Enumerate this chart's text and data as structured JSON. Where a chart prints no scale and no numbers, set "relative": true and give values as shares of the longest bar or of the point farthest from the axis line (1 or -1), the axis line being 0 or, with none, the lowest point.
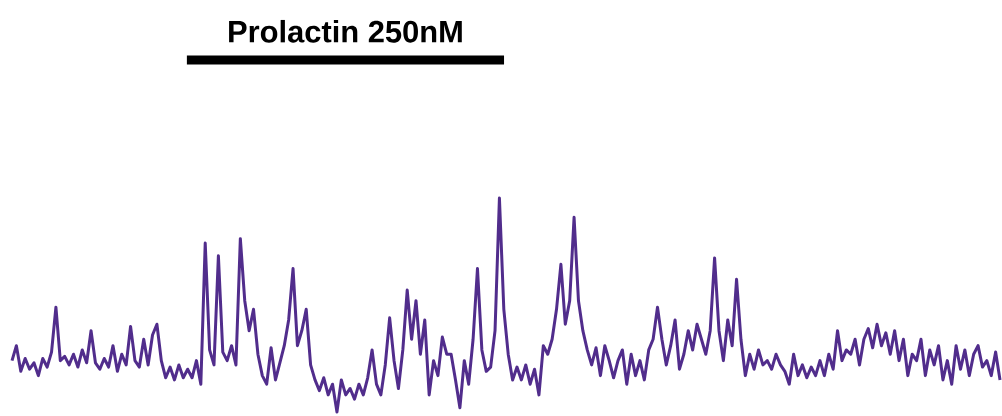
{
  "chart_data": {
    "type": "line",
    "relative": true,
    "line_style": "solid",
    "marker": "none",
    "categories": [
      null,
      null,
      null,
      null,
      null,
      null,
      null,
      null,
      null,
      null,
      null,
      null,
      null,
      null,
      null,
      null,
      null,
      null,
      null,
      null,
      null,
      null,
      null,
      null,
      null,
      null,
      null,
      null,
      null,
      null,
      null,
      null,
      null,
      null,
      null,
      null,
      null,
      null,
      null,
      null,
      null,
      null,
      null,
      null,
      null,
      null,
      null,
      null,
      null,
      null,
      null,
      null,
      null,
      null,
      null,
      null,
      null,
      null,
      null,
      null,
      null,
      null,
      null,
      null,
      null,
      null,
      null,
      null,
      null,
      null,
      null,
      null,
      null,
      null,
      null,
      null,
      null,
      null,
      null,
      null,
      null,
      null,
      null,
      null,
      null,
      null,
      null,
      null,
      null,
      null,
      null,
      null,
      null,
      null,
      null,
      null,
      null,
      null,
      null,
      null,
      null,
      null,
      null,
      null,
      null,
      null,
      null,
      null,
      null,
      null,
      null,
      null,
      null,
      null,
      null,
      null,
      null,
      null,
      null,
      null,
      null,
      null,
      null,
      null,
      null,
      null,
      null,
      null,
      null,
      null,
      null,
      null,
      null,
      null,
      null,
      null,
      null,
      null,
      null,
      null,
      null,
      null,
      null,
      null,
      null,
      null,
      null,
      null,
      null,
      null,
      null,
      null,
      null,
      null,
      null,
      null,
      null,
      null,
      null,
      null,
      null,
      null,
      null,
      null,
      null,
      null,
      null,
      null,
      null,
      null,
      null,
      null,
      null,
      null,
      null,
      null,
      null,
      null,
      null,
      null,
      null,
      null,
      null,
      null,
      null,
      null,
      null,
      null,
      null,
      null,
      null,
      null,
      null,
      null,
      null,
      null,
      null,
      null,
      null,
      null,
      null,
      null,
      null,
      null,
      null,
      null,
      null,
      null,
      null,
      null,
      null,
      null,
      null,
      null,
      null,
      null,
      null,
      null,
      null,
      null,
      null,
      null,
      null,
      null,
      null,
      null
    ],
    "series": [
      {
        "color": "#512d8c",
        "values": [
          0.24,
          0.31,
          0.19,
          0.25,
          0.2,
          0.23,
          0.17,
          0.25,
          0.21,
          0.28,
          0.49,
          0.24,
          0.26,
          0.22,
          0.27,
          0.21,
          0.29,
          0.23,
          0.38,
          0.23,
          0.2,
          0.25,
          0.21,
          0.31,
          0.19,
          0.27,
          0.22,
          0.4,
          0.24,
          0.21,
          0.34,
          0.22,
          0.36,
          0.41,
          0.24,
          0.16,
          0.21,
          0.15,
          0.22,
          0.16,
          0.2,
          0.16,
          0.24,
          0.13,
          0.79,
          0.29,
          0.22,
          0.73,
          0.28,
          0.24,
          0.31,
          0.22,
          0.81,
          0.52,
          0.38,
          0.48,
          0.27,
          0.17,
          0.13,
          0.3,
          0.15,
          0.23,
          0.31,
          0.43,
          0.67,
          0.31,
          0.38,
          0.48,
          0.22,
          0.15,
          0.1,
          0.16,
          0.08,
          0.13,
          0,
          0.15,
          0.08,
          0.11,
          0.06,
          0.13,
          0.08,
          0.16,
          0.29,
          0.13,
          0.08,
          0.22,
          0.44,
          0.24,
          0.11,
          0.29,
          0.57,
          0.34,
          0.52,
          0.27,
          0.43,
          0.08,
          0.24,
          0.17,
          0.35,
          0.27,
          0.27,
          0.15,
          0.02,
          0.24,
          0.13,
          0.34,
          0.67,
          0.29,
          0.19,
          0.21,
          0.38,
          1,
          0.48,
          0.27,
          0.15,
          0.21,
          0.15,
          0.22,
          0.13,
          0.2,
          0.08,
          0.31,
          0.27,
          0.34,
          0.48,
          0.69,
          0.41,
          0.52,
          0.91,
          0.52,
          0.38,
          0.29,
          0.22,
          0.3,
          0.17,
          0.31,
          0.24,
          0.16,
          0.24,
          0.29,
          0.13,
          0.27,
          0.17,
          0.24,
          0.15,
          0.29,
          0.34,
          0.49,
          0.34,
          0.22,
          0.31,
          0.43,
          0.2,
          0.27,
          0.38,
          0.29,
          0.41,
          0.34,
          0.27,
          0.38,
          0.72,
          0.38,
          0.24,
          0.43,
          0.31,
          0.62,
          0.34,
          0.17,
          0.27,
          0.2,
          0.29,
          0.22,
          0.24,
          0.2,
          0.27,
          0.22,
          0.19,
          0.13,
          0.27,
          0.17,
          0.22,
          0.16,
          0.21,
          0.17,
          0.24,
          0.17,
          0.27,
          0.2,
          0.38,
          0.24,
          0.29,
          0.27,
          0.34,
          0.22,
          0.34,
          0.39,
          0.3,
          0.41,
          0.31,
          0.37,
          0.27,
          0.38,
          0.24,
          0.34,
          0.17,
          0.27,
          0.24,
          0.34,
          0.17,
          0.29,
          0.22,
          0.31,
          0.15,
          0.24,
          0.13,
          0.31,
          0.2,
          0.29,
          0.17,
          0.27,
          0.31,
          0.21,
          0.24,
          0.17,
          0.28,
          0.15
        ]
      }
    ],
    "annotations": [
      "Prolactin 250nM"
    ]
  }
}
